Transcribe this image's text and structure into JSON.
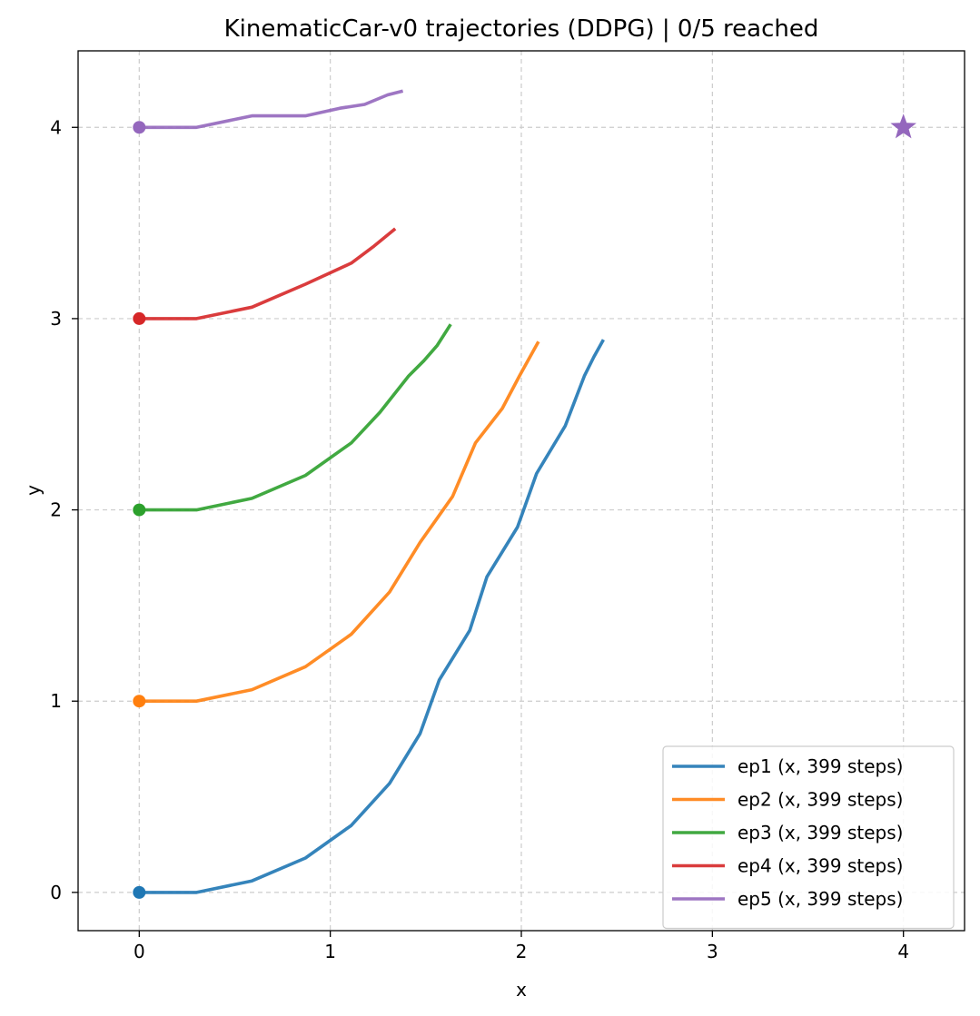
{
  "chart_data": {
    "type": "line",
    "title": "KinematicCar-v0 trajectories (DDPG) | 0/5 reached",
    "xlabel": "x",
    "ylabel": "y",
    "xlim": [
      -0.32,
      4.32
    ],
    "ylim": [
      -0.2,
      4.4
    ],
    "xticks": [
      0,
      1,
      2,
      3,
      4
    ],
    "yticks": [
      0,
      1,
      2,
      3,
      4
    ],
    "grid": true,
    "legend_position": "lower right",
    "goal": {
      "x": 4,
      "y": 4,
      "marker": "star",
      "color": "#9467bd"
    },
    "series": [
      {
        "name": "ep1 (x, 399 steps)",
        "color": "#1f77b4",
        "start": {
          "x": 0,
          "y": 0
        },
        "points": [
          [
            0,
            0
          ],
          [
            0.3,
            0
          ],
          [
            0.59,
            0.06
          ],
          [
            0.87,
            0.18
          ],
          [
            1.11,
            0.35
          ],
          [
            1.31,
            0.57
          ],
          [
            1.47,
            0.83
          ],
          [
            1.57,
            1.11
          ],
          [
            1.73,
            1.37
          ],
          [
            1.82,
            1.65
          ],
          [
            1.98,
            1.91
          ],
          [
            2.08,
            2.19
          ],
          [
            2.23,
            2.44
          ],
          [
            2.33,
            2.7
          ],
          [
            2.38,
            2.8
          ],
          [
            2.43,
            2.89
          ]
        ]
      },
      {
        "name": "ep2 (x, 399 steps)",
        "color": "#ff7f0e",
        "start": {
          "x": 0,
          "y": 1
        },
        "points": [
          [
            0,
            1
          ],
          [
            0.3,
            1
          ],
          [
            0.59,
            1.06
          ],
          [
            0.87,
            1.18
          ],
          [
            1.11,
            1.35
          ],
          [
            1.31,
            1.57
          ],
          [
            1.47,
            1.83
          ],
          [
            1.64,
            2.07
          ],
          [
            1.76,
            2.35
          ],
          [
            1.9,
            2.53
          ],
          [
            1.99,
            2.7
          ],
          [
            2.04,
            2.79
          ],
          [
            2.09,
            2.88
          ]
        ]
      },
      {
        "name": "ep3 (x, 399 steps)",
        "color": "#2ca02c",
        "start": {
          "x": 0,
          "y": 2
        },
        "points": [
          [
            0,
            2
          ],
          [
            0.3,
            2
          ],
          [
            0.59,
            2.06
          ],
          [
            0.87,
            2.18
          ],
          [
            1.11,
            2.35
          ],
          [
            1.26,
            2.51
          ],
          [
            1.41,
            2.7
          ],
          [
            1.49,
            2.78
          ],
          [
            1.56,
            2.86
          ],
          [
            1.63,
            2.97
          ]
        ]
      },
      {
        "name": "ep4 (x, 399 steps)",
        "color": "#d62728",
        "start": {
          "x": 0,
          "y": 3
        },
        "points": [
          [
            0,
            3
          ],
          [
            0.3,
            3
          ],
          [
            0.59,
            3.06
          ],
          [
            0.87,
            3.18
          ],
          [
            1.11,
            3.29
          ],
          [
            1.23,
            3.38
          ],
          [
            1.34,
            3.47
          ]
        ]
      },
      {
        "name": "ep5 (x, 399 steps)",
        "color": "#9467bd",
        "start": {
          "x": 0,
          "y": 4
        },
        "points": [
          [
            0,
            4
          ],
          [
            0.3,
            4
          ],
          [
            0.59,
            4.06
          ],
          [
            0.87,
            4.06
          ],
          [
            1.05,
            4.1
          ],
          [
            1.18,
            4.12
          ],
          [
            1.3,
            4.17
          ],
          [
            1.38,
            4.19
          ]
        ]
      }
    ]
  }
}
